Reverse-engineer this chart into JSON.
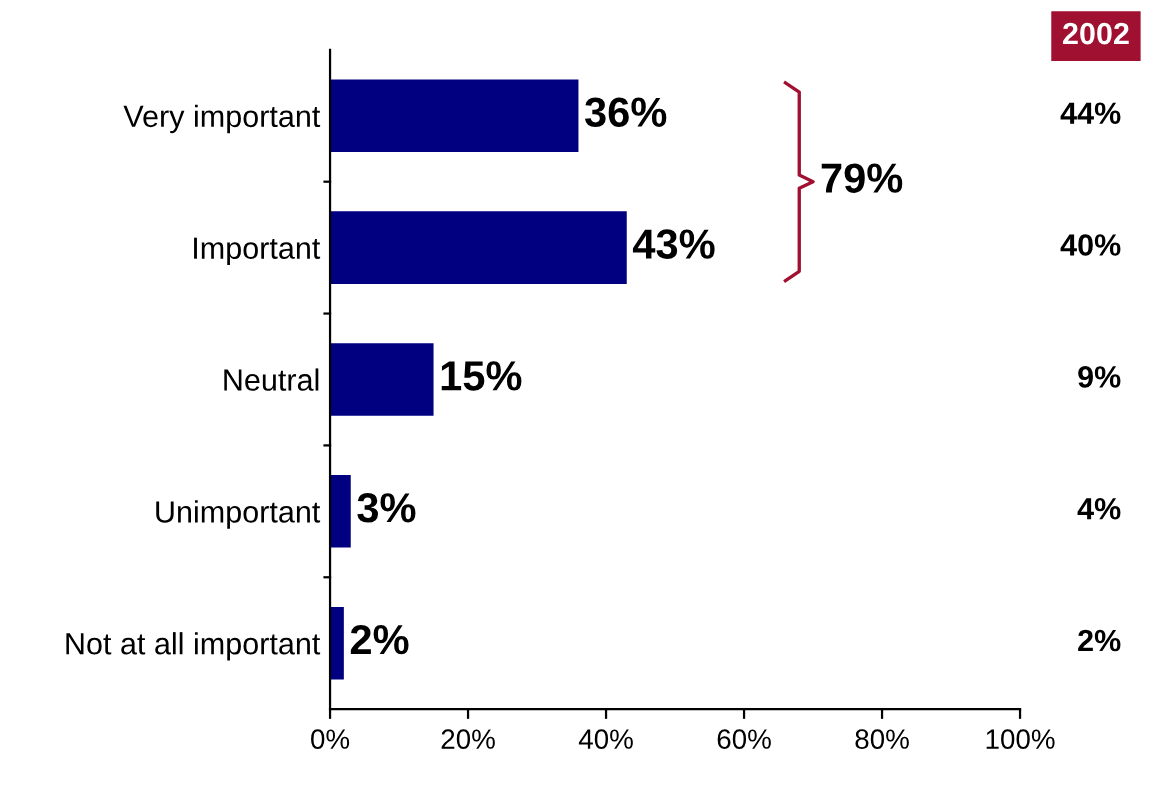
{
  "chart_data": {
    "type": "bar",
    "orientation": "horizontal",
    "categories": [
      "Very important",
      "Important",
      "Neutral",
      "Unimportant",
      "Not at all important"
    ],
    "values": [
      36,
      43,
      15,
      3,
      2
    ],
    "color": "#000080",
    "value_labels": [
      "36%",
      "43%",
      "15%",
      "3%",
      "2%"
    ],
    "xlim": [
      0,
      100
    ],
    "xticks": [
      {
        "value": 0,
        "label": "0%"
      },
      {
        "value": 20,
        "label": "20%"
      },
      {
        "value": 40,
        "label": "40%"
      },
      {
        "value": 60,
        "label": "60%"
      },
      {
        "value": 80,
        "label": "80%"
      },
      {
        "value": 100,
        "label": "100%"
      }
    ],
    "grid": false,
    "annotations": [
      "79%",
      "2002",
      "44%",
      "40%",
      "9%",
      "4%",
      "2%"
    ]
  }
}
